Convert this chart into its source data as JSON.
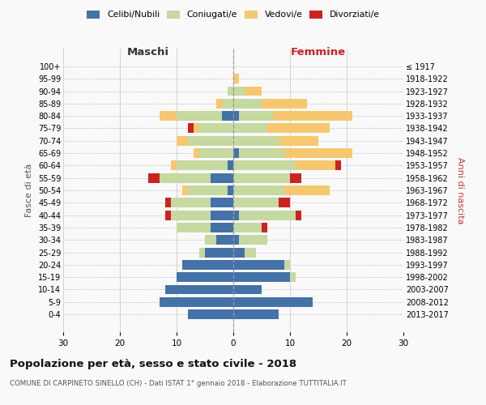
{
  "age_groups": [
    "100+",
    "95-99",
    "90-94",
    "85-89",
    "80-84",
    "75-79",
    "70-74",
    "65-69",
    "60-64",
    "55-59",
    "50-54",
    "45-49",
    "40-44",
    "35-39",
    "30-34",
    "25-29",
    "20-24",
    "15-19",
    "10-14",
    "5-9",
    "0-4"
  ],
  "birth_years": [
    "≤ 1917",
    "1918-1922",
    "1923-1927",
    "1928-1932",
    "1933-1937",
    "1938-1942",
    "1943-1947",
    "1948-1952",
    "1953-1957",
    "1958-1962",
    "1963-1967",
    "1968-1972",
    "1973-1977",
    "1978-1982",
    "1983-1987",
    "1988-1992",
    "1993-1997",
    "1998-2002",
    "2003-2007",
    "2008-2012",
    "2013-2017"
  ],
  "maschi": {
    "celibi": [
      0,
      0,
      0,
      0,
      2,
      0,
      0,
      0,
      1,
      4,
      1,
      4,
      4,
      4,
      3,
      5,
      9,
      10,
      12,
      13,
      8
    ],
    "coniugati": [
      0,
      0,
      1,
      2,
      8,
      6,
      8,
      6,
      9,
      9,
      7,
      7,
      7,
      6,
      2,
      1,
      0,
      0,
      0,
      0,
      0
    ],
    "vedovi": [
      0,
      0,
      0,
      1,
      3,
      1,
      2,
      1,
      1,
      0,
      1,
      0,
      0,
      0,
      0,
      0,
      0,
      0,
      0,
      0,
      0
    ],
    "divorziati": [
      0,
      0,
      0,
      0,
      0,
      1,
      0,
      0,
      0,
      2,
      0,
      1,
      1,
      0,
      0,
      0,
      0,
      0,
      0,
      0,
      0
    ]
  },
  "femmine": {
    "nubili": [
      0,
      0,
      0,
      0,
      1,
      0,
      0,
      1,
      0,
      0,
      0,
      0,
      1,
      0,
      1,
      2,
      9,
      10,
      5,
      14,
      8
    ],
    "coniugate": [
      0,
      0,
      2,
      5,
      6,
      6,
      8,
      8,
      11,
      10,
      9,
      8,
      10,
      5,
      5,
      2,
      1,
      1,
      0,
      0,
      0
    ],
    "vedove": [
      0,
      1,
      3,
      8,
      14,
      11,
      7,
      12,
      7,
      0,
      8,
      0,
      0,
      0,
      0,
      0,
      0,
      0,
      0,
      0,
      0
    ],
    "divorziate": [
      0,
      0,
      0,
      0,
      0,
      0,
      0,
      0,
      1,
      2,
      0,
      2,
      1,
      1,
      0,
      0,
      0,
      0,
      0,
      0,
      0
    ]
  },
  "colors": {
    "celibi": "#4472a8",
    "coniugati": "#c5d9a0",
    "vedovi": "#f5c870",
    "divorziati": "#cc2222"
  },
  "xlim": 30,
  "title": "Popolazione per età, sesso e stato civile - 2018",
  "subtitle": "COMUNE DI CARPINETO SINELLO (CH) - Dati ISTAT 1° gennaio 2018 - Elaborazione TUTTITALIA.IT",
  "ylabel_left": "Fasce di età",
  "ylabel_right": "Anni di nascita",
  "xlabel_maschi": "Maschi",
  "xlabel_femmine": "Femmine",
  "bg_color": "#f9f9f9",
  "grid_color": "#cccccc",
  "legend_labels": [
    "Celibi/Nubili",
    "Coniugati/e",
    "Vedovi/e",
    "Divorziati/e"
  ]
}
